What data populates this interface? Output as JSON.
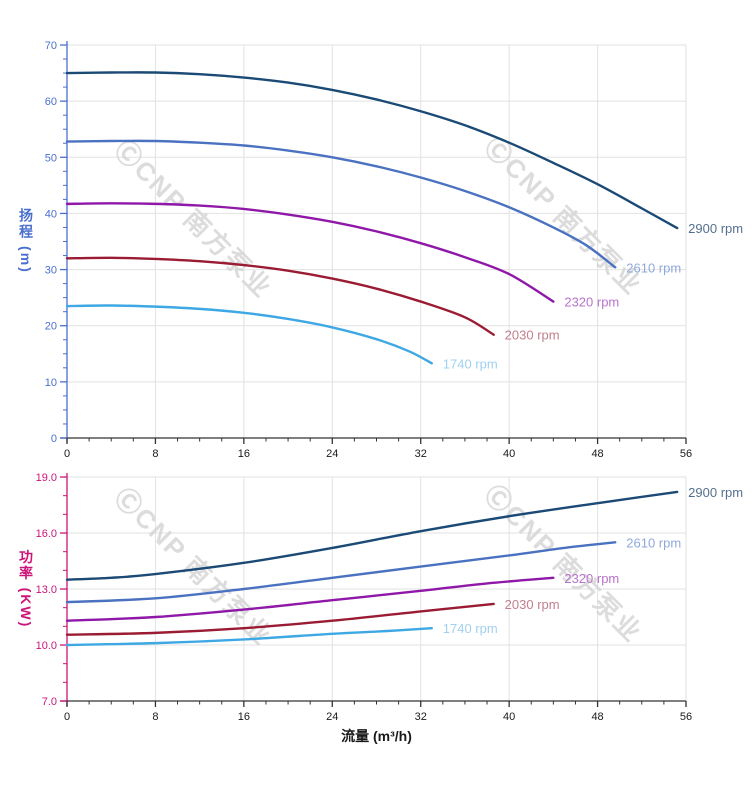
{
  "watermark": {
    "text": "ⒸCNP 南方泵业",
    "color": "#d4d4d4"
  },
  "axis_colors": {
    "head_axis": "#4a6fce",
    "power_axis": "#cc1579",
    "x_axis": "#333333",
    "x_tick_label": "#1a1a1a",
    "grid": "#e2e2e2"
  },
  "chart_data": [
    {
      "type": "line",
      "title": "",
      "xlabel": "",
      "ylabel": "扬程 (m)",
      "ylabel_color": "#4a6fce",
      "xlim": [
        0,
        56
      ],
      "ylim": [
        0,
        70
      ],
      "x_major_ticks": [
        0,
        8,
        16,
        24,
        32,
        40,
        48,
        56
      ],
      "x_minor_step": 2,
      "y_major_ticks": [
        0,
        10,
        20,
        30,
        40,
        50,
        60,
        70
      ],
      "y_minor_step": 2.5,
      "y_tick_decimals": 0,
      "grid": true,
      "legend_position": "end-of-line",
      "series": [
        {
          "name": "2900 rpm",
          "color": "#1a4a75",
          "label_color": "#54708e",
          "points": [
            [
              0,
              65
            ],
            [
              4,
              65.1
            ],
            [
              8,
              65.1
            ],
            [
              12,
              64.8
            ],
            [
              16,
              64.2
            ],
            [
              20,
              63.3
            ],
            [
              24,
              62
            ],
            [
              28,
              60.3
            ],
            [
              32,
              58.2
            ],
            [
              36,
              55.7
            ],
            [
              40,
              52.6
            ],
            [
              44,
              49
            ],
            [
              48,
              45.2
            ],
            [
              52,
              40.9
            ],
            [
              55.2,
              37.4
            ]
          ]
        },
        {
          "name": "2610 rpm",
          "color": "#4a72c0",
          "label_color": "#8fa8da",
          "points": [
            [
              0,
              52.8
            ],
            [
              4,
              52.9
            ],
            [
              8,
              52.9
            ],
            [
              12,
              52.6
            ],
            [
              16,
              52.1
            ],
            [
              20,
              51.2
            ],
            [
              24,
              50
            ],
            [
              28,
              48.4
            ],
            [
              32,
              46.4
            ],
            [
              36,
              44
            ],
            [
              40,
              41.1
            ],
            [
              44,
              37.5
            ],
            [
              47,
              34.3
            ],
            [
              49.6,
              30.4
            ]
          ]
        },
        {
          "name": "2320 rpm",
          "color": "#8f18a8",
          "label_color": "#b873cc",
          "points": [
            [
              0,
              41.7
            ],
            [
              4,
              41.8
            ],
            [
              8,
              41.7
            ],
            [
              12,
              41.4
            ],
            [
              16,
              40.8
            ],
            [
              20,
              39.8
            ],
            [
              24,
              38.5
            ],
            [
              28,
              36.8
            ],
            [
              32,
              34.7
            ],
            [
              36,
              32.2
            ],
            [
              40,
              29.2
            ],
            [
              44,
              24.3
            ]
          ]
        },
        {
          "name": "2030 rpm",
          "color": "#9b1b32",
          "label_color": "#c27f8e",
          "points": [
            [
              0,
              32
            ],
            [
              4,
              32.1
            ],
            [
              8,
              31.9
            ],
            [
              12,
              31.5
            ],
            [
              16,
              30.8
            ],
            [
              20,
              29.8
            ],
            [
              24,
              28.4
            ],
            [
              28,
              26.6
            ],
            [
              32,
              24.3
            ],
            [
              36,
              21.5
            ],
            [
              38.6,
              18.4
            ]
          ]
        },
        {
          "name": "1740 rpm",
          "color": "#3ea8e5",
          "label_color": "#9fd1f1",
          "points": [
            [
              0,
              23.5
            ],
            [
              4,
              23.6
            ],
            [
              8,
              23.4
            ],
            [
              12,
              23
            ],
            [
              16,
              22.3
            ],
            [
              20,
              21.2
            ],
            [
              24,
              19.7
            ],
            [
              28,
              17.6
            ],
            [
              31,
              15.4
            ],
            [
              33,
              13.3
            ]
          ]
        }
      ]
    },
    {
      "type": "line",
      "title": "",
      "xlabel": "流量 (m³/h)",
      "ylabel": "功率 (KW)",
      "ylabel_color": "#cc1579",
      "xlim": [
        0,
        56
      ],
      "ylim": [
        7,
        19
      ],
      "x_major_ticks": [
        0,
        8,
        16,
        24,
        32,
        40,
        48,
        56
      ],
      "x_minor_step": 2,
      "y_major_ticks": [
        7,
        10,
        13,
        16,
        19
      ],
      "y_minor_step": 1,
      "y_tick_decimals": 1,
      "grid": true,
      "legend_position": "end-of-line",
      "series": [
        {
          "name": "2900 rpm",
          "color": "#1a4a75",
          "label_color": "#54708e",
          "points": [
            [
              0,
              13.5
            ],
            [
              4,
              13.6
            ],
            [
              8,
              13.8
            ],
            [
              16,
              14.4
            ],
            [
              24,
              15.2
            ],
            [
              32,
              16.1
            ],
            [
              40,
              16.9
            ],
            [
              48,
              17.6
            ],
            [
              55.2,
              18.2
            ]
          ]
        },
        {
          "name": "2610 rpm",
          "color": "#4a72c0",
          "label_color": "#8fa8da",
          "points": [
            [
              0,
              12.3
            ],
            [
              8,
              12.5
            ],
            [
              16,
              13
            ],
            [
              24,
              13.6
            ],
            [
              32,
              14.2
            ],
            [
              40,
              14.8
            ],
            [
              45,
              15.2
            ],
            [
              49.6,
              15.5
            ]
          ]
        },
        {
          "name": "2320 rpm",
          "color": "#8f18a8",
          "label_color": "#b873cc",
          "points": [
            [
              0,
              11.3
            ],
            [
              8,
              11.5
            ],
            [
              16,
              11.9
            ],
            [
              24,
              12.4
            ],
            [
              32,
              12.9
            ],
            [
              38,
              13.3
            ],
            [
              44,
              13.6
            ]
          ]
        },
        {
          "name": "2030 rpm",
          "color": "#9b1b32",
          "label_color": "#c27f8e",
          "points": [
            [
              0,
              10.55
            ],
            [
              8,
              10.65
            ],
            [
              16,
              10.9
            ],
            [
              24,
              11.3
            ],
            [
              32,
              11.8
            ],
            [
              38.6,
              12.2
            ]
          ]
        },
        {
          "name": "1740 rpm",
          "color": "#3ea8e5",
          "label_color": "#9fd1f1",
          "points": [
            [
              0,
              10
            ],
            [
              8,
              10.1
            ],
            [
              16,
              10.3
            ],
            [
              24,
              10.6
            ],
            [
              29,
              10.75
            ],
            [
              33,
              10.9
            ]
          ]
        }
      ]
    }
  ]
}
